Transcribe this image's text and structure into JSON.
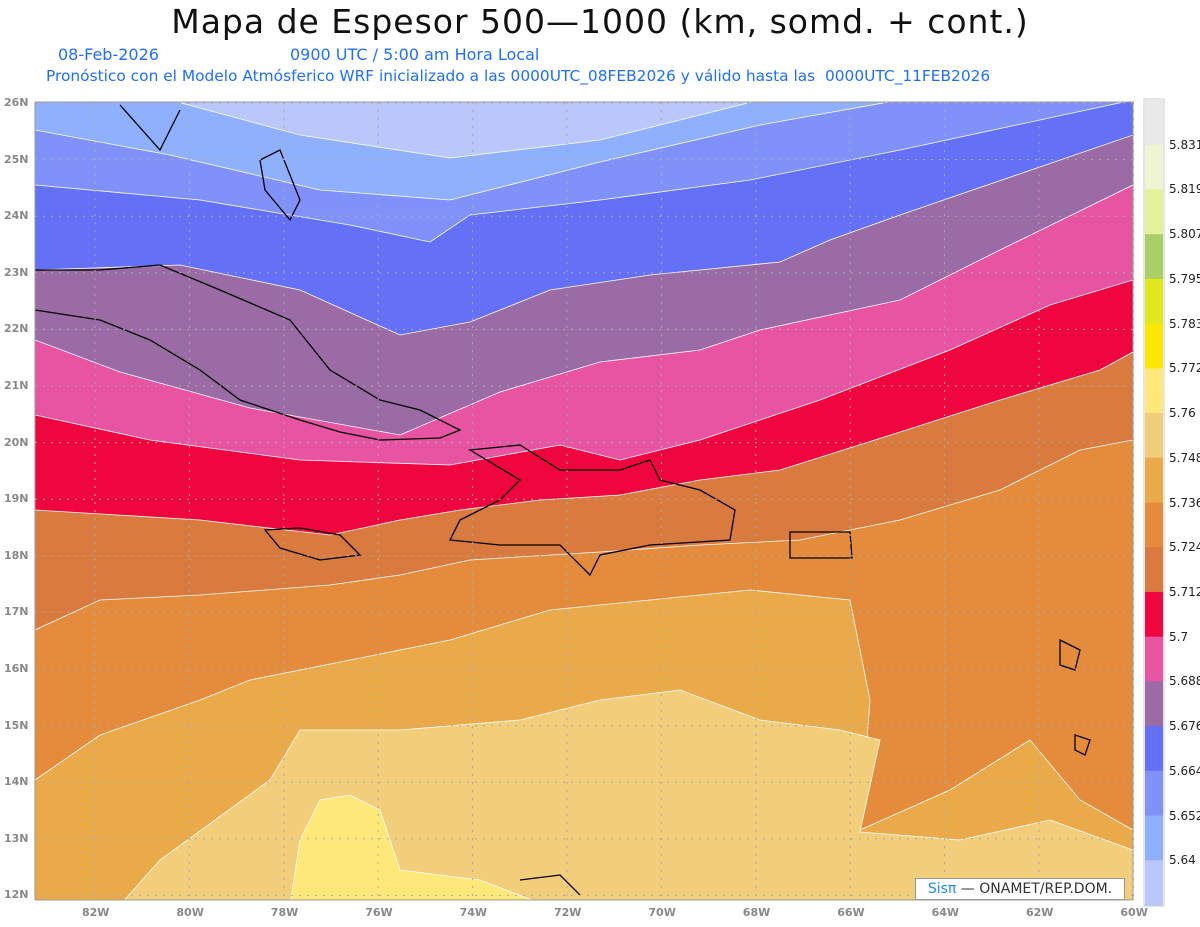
{
  "title": "Mapa de Espesor 500—1000 (km, somd. + cont.)",
  "date": "08-Feb-2026",
  "time": "0900 UTC / 5:00 am Hora Local",
  "description": "Pronóstico con el Modelo Atmósferico WRF inicializado a las 0000UTC_08FEB2026 y válido hasta las  0000UTC_11FEB2026",
  "credit": {
    "brand": "Sisπ",
    "org": " —  ONAMET/REP.DOM."
  },
  "lon_labels": [
    "82W",
    "80W",
    "78W",
    "76W",
    "74W",
    "72W",
    "70W",
    "68W",
    "66W",
    "64W",
    "62W",
    "60W"
  ],
  "lat_labels": [
    "26N",
    "25N",
    "24N",
    "23N",
    "22N",
    "21N",
    "20N",
    "19N",
    "18N",
    "17N",
    "16N",
    "15N",
    "14N",
    "13N",
    "12N"
  ],
  "colorbar": {
    "labels": [
      "5.831",
      "5.819",
      "5.807",
      "5.795",
      "5.783",
      "5.772",
      "5.76",
      "5.748",
      "5.736",
      "5.724",
      "5.712",
      "5.7",
      "5.688",
      "5.676",
      "5.664",
      "5.652",
      "5.64"
    ],
    "colors": [
      "#e9e9e9",
      "#eef5d2",
      "#e3f29b",
      "#a9cf66",
      "#e2e81c",
      "#fbe800",
      "#ffe87a",
      "#f2cd7a",
      "#ebaa4a",
      "#e48c3c",
      "#d97b3e",
      "#ef063f",
      "#e654a2",
      "#9a6ba4",
      "#6470f5",
      "#8191fa",
      "#8fb0fc",
      "#b9c7fb"
    ]
  }
}
